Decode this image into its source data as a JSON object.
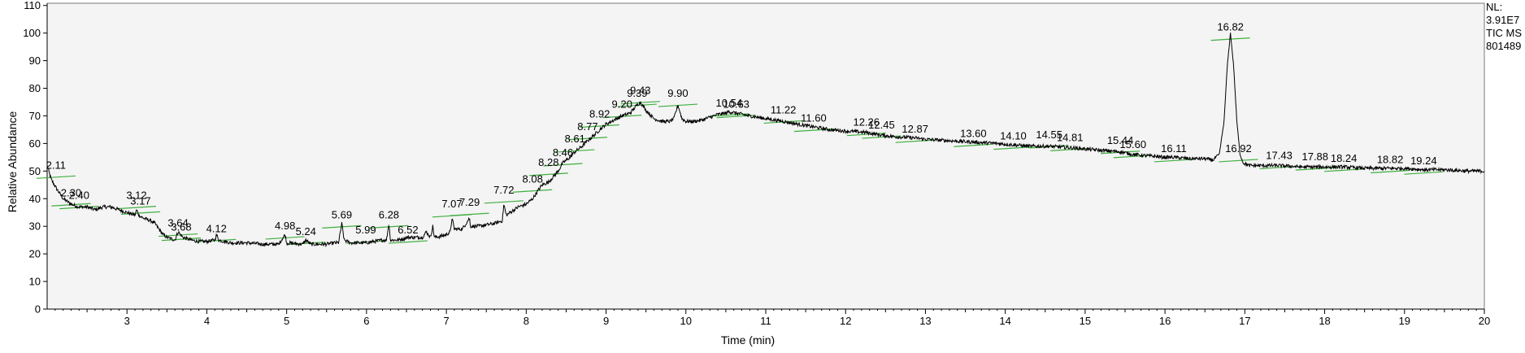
{
  "chart_data": {
    "type": "line",
    "title": "",
    "xlabel": "Time (min)",
    "ylabel": "Relative Abundance",
    "xlim": [
      2.0,
      20.0
    ],
    "ylim": [
      0,
      110
    ],
    "grid": false,
    "x_ticks": [
      3,
      4,
      5,
      6,
      7,
      8,
      9,
      10,
      11,
      12,
      13,
      14,
      15,
      16,
      17,
      18,
      19,
      20
    ],
    "y_ticks": [
      0,
      10,
      20,
      30,
      40,
      50,
      60,
      70,
      80,
      90,
      100,
      110
    ],
    "header_lines": [
      "NL:",
      "3.91E7",
      "TIC  MS",
      "801489"
    ],
    "baseline_color": "#3fae3f",
    "trace_points": [
      [
        2.0,
        52
      ],
      [
        2.05,
        47
      ],
      [
        2.11,
        44
      ],
      [
        2.2,
        40
      ],
      [
        2.3,
        38
      ],
      [
        2.4,
        37
      ],
      [
        2.5,
        37
      ],
      [
        2.6,
        36
      ],
      [
        2.7,
        37
      ],
      [
        2.8,
        37
      ],
      [
        2.9,
        36
      ],
      [
        3.0,
        35
      ],
      [
        3.1,
        34
      ],
      [
        3.12,
        36
      ],
      [
        3.15,
        34
      ],
      [
        3.2,
        33
      ],
      [
        3.3,
        32
      ],
      [
        3.35,
        31
      ],
      [
        3.4,
        29
      ],
      [
        3.45,
        27
      ],
      [
        3.5,
        26
      ],
      [
        3.6,
        25
      ],
      [
        3.64,
        28
      ],
      [
        3.7,
        26
      ],
      [
        3.8,
        25
      ],
      [
        3.9,
        24.5
      ],
      [
        4.0,
        24.5
      ],
      [
        4.1,
        25
      ],
      [
        4.12,
        27
      ],
      [
        4.15,
        25
      ],
      [
        4.3,
        24
      ],
      [
        4.5,
        24
      ],
      [
        4.7,
        23.5
      ],
      [
        4.9,
        23.5
      ],
      [
        4.98,
        27
      ],
      [
        5.0,
        24
      ],
      [
        5.2,
        23.5
      ],
      [
        5.24,
        25
      ],
      [
        5.3,
        23.5
      ],
      [
        5.5,
        23.5
      ],
      [
        5.6,
        24
      ],
      [
        5.65,
        24
      ],
      [
        5.69,
        31
      ],
      [
        5.72,
        25
      ],
      [
        5.8,
        24
      ],
      [
        5.99,
        24
      ],
      [
        6.1,
        24.5
      ],
      [
        6.2,
        25
      ],
      [
        6.25,
        25
      ],
      [
        6.28,
        31
      ],
      [
        6.3,
        25
      ],
      [
        6.4,
        25
      ],
      [
        6.52,
        26
      ],
      [
        6.6,
        26
      ],
      [
        6.7,
        26
      ],
      [
        6.75,
        28
      ],
      [
        6.8,
        26
      ],
      [
        6.83,
        30
      ],
      [
        6.85,
        26
      ],
      [
        6.95,
        26.5
      ],
      [
        7.0,
        27
      ],
      [
        7.05,
        28
      ],
      [
        7.07,
        33
      ],
      [
        7.1,
        29
      ],
      [
        7.2,
        29
      ],
      [
        7.29,
        33
      ],
      [
        7.3,
        30
      ],
      [
        7.4,
        30
      ],
      [
        7.5,
        30.5
      ],
      [
        7.6,
        31
      ],
      [
        7.7,
        32
      ],
      [
        7.72,
        38
      ],
      [
        7.75,
        34
      ],
      [
        7.8,
        35
      ],
      [
        7.9,
        37
      ],
      [
        8.0,
        38
      ],
      [
        8.08,
        40
      ],
      [
        8.15,
        43
      ],
      [
        8.2,
        45
      ],
      [
        8.28,
        46
      ],
      [
        8.4,
        50
      ],
      [
        8.46,
        53
      ],
      [
        8.55,
        55
      ],
      [
        8.61,
        57
      ],
      [
        8.7,
        59
      ],
      [
        8.77,
        61
      ],
      [
        8.85,
        63
      ],
      [
        8.92,
        65
      ],
      [
        9.0,
        67
      ],
      [
        9.1,
        68.5
      ],
      [
        9.2,
        70
      ],
      [
        9.3,
        71
      ],
      [
        9.39,
        74
      ],
      [
        9.43,
        75
      ],
      [
        9.5,
        72
      ],
      [
        9.6,
        69
      ],
      [
        9.7,
        68
      ],
      [
        9.8,
        68
      ],
      [
        9.85,
        69
      ],
      [
        9.9,
        74
      ],
      [
        9.95,
        69
      ],
      [
        10.0,
        68
      ],
      [
        10.1,
        68
      ],
      [
        10.2,
        68.5
      ],
      [
        10.3,
        69.5
      ],
      [
        10.4,
        70.5
      ],
      [
        10.5,
        71
      ],
      [
        10.54,
        71.5
      ],
      [
        10.63,
        71
      ],
      [
        10.8,
        70
      ],
      [
        11.0,
        69
      ],
      [
        11.22,
        68
      ],
      [
        11.4,
        67
      ],
      [
        11.6,
        66
      ],
      [
        11.8,
        65
      ],
      [
        12.0,
        64.5
      ],
      [
        12.26,
        64
      ],
      [
        12.45,
        63
      ],
      [
        12.6,
        62.5
      ],
      [
        12.87,
        62
      ],
      [
        13.0,
        61.5
      ],
      [
        13.3,
        61
      ],
      [
        13.6,
        60.5
      ],
      [
        13.9,
        60
      ],
      [
        14.1,
        59.5
      ],
      [
        14.3,
        59
      ],
      [
        14.55,
        59
      ],
      [
        14.81,
        58.5
      ],
      [
        15.0,
        58
      ],
      [
        15.2,
        57.5
      ],
      [
        15.44,
        57
      ],
      [
        15.6,
        56
      ],
      [
        15.8,
        55.5
      ],
      [
        16.0,
        55
      ],
      [
        16.11,
        55
      ],
      [
        16.3,
        54.5
      ],
      [
        16.5,
        54.5
      ],
      [
        16.6,
        54
      ],
      [
        16.68,
        56
      ],
      [
        16.74,
        68
      ],
      [
        16.78,
        88
      ],
      [
        16.82,
        100
      ],
      [
        16.86,
        88
      ],
      [
        16.9,
        68
      ],
      [
        16.94,
        56
      ],
      [
        16.98,
        53
      ],
      [
        17.05,
        52
      ],
      [
        17.2,
        52
      ],
      [
        17.43,
        52
      ],
      [
        17.7,
        51.5
      ],
      [
        17.88,
        51.5
      ],
      [
        18.0,
        51.5
      ],
      [
        18.24,
        51.5
      ],
      [
        18.5,
        51
      ],
      [
        18.82,
        51
      ],
      [
        19.0,
        51
      ],
      [
        19.24,
        50.5
      ],
      [
        19.5,
        50.5
      ],
      [
        19.8,
        50
      ],
      [
        20.0,
        50
      ]
    ],
    "peaks": [
      {
        "label": "2.11",
        "rt": 2.11,
        "y": 50
      },
      {
        "label": "2.30",
        "rt": 2.3,
        "y": 40
      },
      {
        "label": "2.40",
        "rt": 2.4,
        "y": 39
      },
      {
        "label": "3.12",
        "rt": 3.12,
        "y": 39
      },
      {
        "label": "3.17",
        "rt": 3.17,
        "y": 37
      },
      {
        "label": "3.64",
        "rt": 3.64,
        "y": 29
      },
      {
        "label": "3.68",
        "rt": 3.68,
        "y": 27.5
      },
      {
        "label": "4.12",
        "rt": 4.12,
        "y": 27
      },
      {
        "label": "4.98",
        "rt": 4.98,
        "y": 28
      },
      {
        "label": "5.24",
        "rt": 5.24,
        "y": 26
      },
      {
        "label": "5.69",
        "rt": 5.69,
        "y": 32
      },
      {
        "label": "5.99",
        "rt": 5.99,
        "y": 26.5
      },
      {
        "label": "6.28",
        "rt": 6.28,
        "y": 32
      },
      {
        "label": "6.52",
        "rt": 6.52,
        "y": 26.5
      },
      {
        "label": "7.07",
        "rt": 7.07,
        "y": 36
      },
      {
        "label": "7.29",
        "rt": 7.29,
        "y": 36.5
      },
      {
        "label": "7.72",
        "rt": 7.72,
        "y": 41
      },
      {
        "label": "8.08",
        "rt": 8.08,
        "y": 45
      },
      {
        "label": "8.28",
        "rt": 8.28,
        "y": 51
      },
      {
        "label": "8.46",
        "rt": 8.46,
        "y": 54.5
      },
      {
        "label": "8.61",
        "rt": 8.61,
        "y": 59.5
      },
      {
        "label": "8.77",
        "rt": 8.77,
        "y": 64
      },
      {
        "label": "8.92",
        "rt": 8.92,
        "y": 68.5
      },
      {
        "label": "9.20",
        "rt": 9.2,
        "y": 72
      },
      {
        "label": "9.39",
        "rt": 9.39,
        "y": 76
      },
      {
        "label": "9.43",
        "rt": 9.43,
        "y": 77
      },
      {
        "label": "9.90",
        "rt": 9.9,
        "y": 76
      },
      {
        "label": "10.54",
        "rt": 10.54,
        "y": 72.5
      },
      {
        "label": "10.63",
        "rt": 10.63,
        "y": 72
      },
      {
        "label": "11.22",
        "rt": 11.22,
        "y": 70
      },
      {
        "label": "11.60",
        "rt": 11.6,
        "y": 67
      },
      {
        "label": "12.26",
        "rt": 12.26,
        "y": 65.5
      },
      {
        "label": "12.45",
        "rt": 12.45,
        "y": 64.5
      },
      {
        "label": "12.87",
        "rt": 12.87,
        "y": 63
      },
      {
        "label": "13.60",
        "rt": 13.6,
        "y": 61.5
      },
      {
        "label": "14.10",
        "rt": 14.1,
        "y": 60.5
      },
      {
        "label": "14.55",
        "rt": 14.55,
        "y": 61
      },
      {
        "label": "14.81",
        "rt": 14.81,
        "y": 60
      },
      {
        "label": "15.44",
        "rt": 15.44,
        "y": 59
      },
      {
        "label": "15.60",
        "rt": 15.6,
        "y": 57.5
      },
      {
        "label": "16.11",
        "rt": 16.11,
        "y": 56
      },
      {
        "label": "16.82",
        "rt": 16.82,
        "y": 100
      },
      {
        "label": "16.92",
        "rt": 16.92,
        "y": 56
      },
      {
        "label": "17.43",
        "rt": 17.43,
        "y": 53.5
      },
      {
        "label": "17.88",
        "rt": 17.88,
        "y": 53
      },
      {
        "label": "18.24",
        "rt": 18.24,
        "y": 52.5
      },
      {
        "label": "18.82",
        "rt": 18.82,
        "y": 52
      },
      {
        "label": "19.24",
        "rt": 19.24,
        "y": 51.5
      }
    ]
  }
}
